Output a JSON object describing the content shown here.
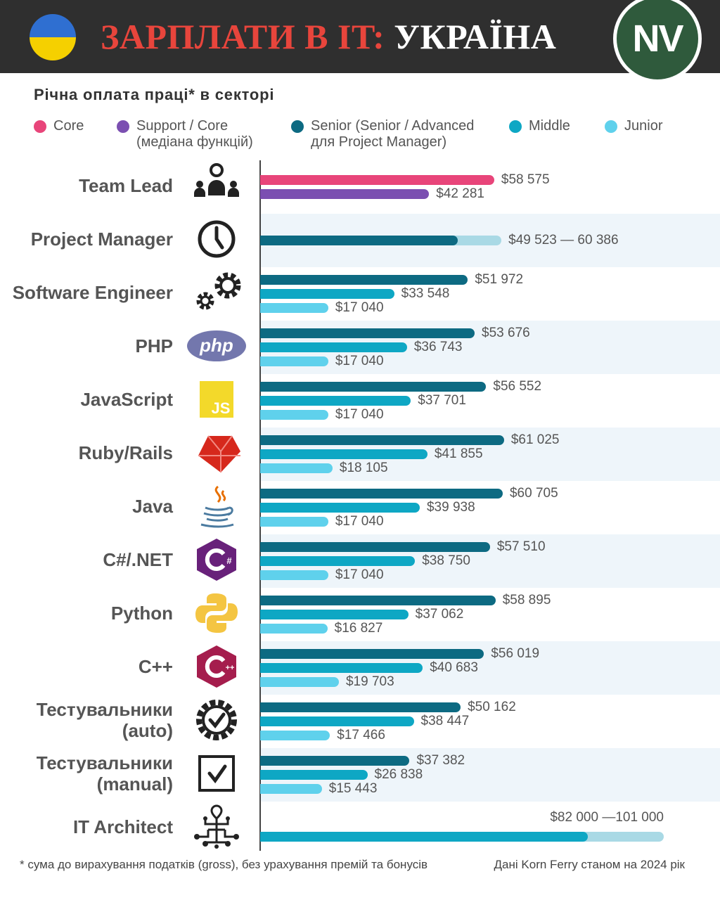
{
  "header": {
    "title_part1": "ЗАРПЛАТИ В IT:",
    "title_part2": "УКРАЇНА",
    "logo_text": "NV",
    "flag_colors": [
      "#2f6fd1",
      "#f5d000"
    ]
  },
  "subtitle": "Річна оплата праці* в секторі",
  "legend": [
    {
      "label": "Core",
      "color": "#e8457a"
    },
    {
      "label": "Support / Core\n(медіана функцій)",
      "color": "#7b4fb1"
    },
    {
      "label": "Senior (Senior / Advanced\nдля Project Manager)",
      "color": "#0d6a82"
    },
    {
      "label": "Middle",
      "color": "#0ea7c4"
    },
    {
      "label": "Junior",
      "color": "#5fd1ec"
    }
  ],
  "chart_data": {
    "type": "bar",
    "orientation": "horizontal",
    "currency": "USD",
    "xlim": [
      0,
      101000
    ],
    "series_colors": {
      "Core": "#e8457a",
      "Support / Core": "#7b4fb1",
      "Senior": "#0d6a82",
      "Middle": "#0ea7c4",
      "Junior": "#5fd1ec",
      "range": "#a9d9e5"
    },
    "rows": [
      {
        "label": "Team Lead",
        "icon": "team-icon",
        "bars": [
          {
            "series": "Core",
            "value": 58575,
            "text": "$58 575"
          },
          {
            "series": "Support / Core",
            "value": 42281,
            "text": "$42 281"
          }
        ]
      },
      {
        "label": "Project Manager",
        "icon": "clock-icon",
        "bars": [
          {
            "series": "Senior",
            "value": 49523,
            "value_max": 60386,
            "text": "$49 523 — 60 386"
          }
        ]
      },
      {
        "label": "Software Engineer",
        "icon": "gears-icon",
        "bars": [
          {
            "series": "Senior",
            "value": 51972,
            "text": "$51 972"
          },
          {
            "series": "Middle",
            "value": 33548,
            "text": "$33 548"
          },
          {
            "series": "Junior",
            "value": 17040,
            "text": "$17 040"
          }
        ]
      },
      {
        "label": "PHP",
        "icon": "php-icon",
        "bars": [
          {
            "series": "Senior",
            "value": 53676,
            "text": "$53 676"
          },
          {
            "series": "Middle",
            "value": 36743,
            "text": "$36 743"
          },
          {
            "series": "Junior",
            "value": 17040,
            "text": "$17 040"
          }
        ]
      },
      {
        "label": "JavaScript",
        "icon": "javascript-icon",
        "bars": [
          {
            "series": "Senior",
            "value": 56552,
            "text": "$56 552"
          },
          {
            "series": "Middle",
            "value": 37701,
            "text": "$37 701"
          },
          {
            "series": "Junior",
            "value": 17040,
            "text": "$17 040"
          }
        ]
      },
      {
        "label": "Ruby/Rails",
        "icon": "ruby-icon",
        "bars": [
          {
            "series": "Senior",
            "value": 61025,
            "text": "$61 025"
          },
          {
            "series": "Middle",
            "value": 41855,
            "text": "$41 855"
          },
          {
            "series": "Junior",
            "value": 18105,
            "text": "$18 105"
          }
        ]
      },
      {
        "label": "Java",
        "icon": "java-icon",
        "bars": [
          {
            "series": "Senior",
            "value": 60705,
            "text": "$60 705"
          },
          {
            "series": "Middle",
            "value": 39938,
            "text": "$39 938"
          },
          {
            "series": "Junior",
            "value": 17040,
            "text": "$17 040"
          }
        ]
      },
      {
        "label": "C#/.NET",
        "icon": "csharp-icon",
        "bars": [
          {
            "series": "Senior",
            "value": 57510,
            "text": "$57 510"
          },
          {
            "series": "Middle",
            "value": 38750,
            "text": "$38 750"
          },
          {
            "series": "Junior",
            "value": 17040,
            "text": "$17 040"
          }
        ]
      },
      {
        "label": "Python",
        "icon": "python-icon",
        "bars": [
          {
            "series": "Senior",
            "value": 58895,
            "text": "$58 895"
          },
          {
            "series": "Middle",
            "value": 37062,
            "text": "$37 062"
          },
          {
            "series": "Junior",
            "value": 16827,
            "text": "$16 827"
          }
        ]
      },
      {
        "label": "C++",
        "icon": "cplusplus-icon",
        "bars": [
          {
            "series": "Senior",
            "value": 56019,
            "text": "$56 019"
          },
          {
            "series": "Middle",
            "value": 40683,
            "text": "$40 683"
          },
          {
            "series": "Junior",
            "value": 19703,
            "text": "$19 703"
          }
        ]
      },
      {
        "label": "Тестувальники\n(auto)",
        "icon": "gear-check-icon",
        "bars": [
          {
            "series": "Senior",
            "value": 50162,
            "text": "$50 162"
          },
          {
            "series": "Middle",
            "value": 38447,
            "text": "$38 447"
          },
          {
            "series": "Junior",
            "value": 17466,
            "text": "$17 466"
          }
        ]
      },
      {
        "label": "Тестувальники\n(manual)",
        "icon": "checkbox-icon",
        "bars": [
          {
            "series": "Senior",
            "value": 37382,
            "text": "$37 382"
          },
          {
            "series": "Middle",
            "value": 26838,
            "text": "$26 838"
          },
          {
            "series": "Junior",
            "value": 15443,
            "text": "$15 443"
          }
        ]
      },
      {
        "label": "IT Architect",
        "icon": "network-icon",
        "bars": [
          {
            "series": "Middle",
            "value": 82000,
            "value_max": 101000,
            "text": "$82 000 —101 000"
          }
        ]
      }
    ]
  },
  "footnote": "* сума до вирахування податків (gross), без урахування премій та бонусів",
  "source": "Дані Korn Ferry станом на 2024 рік"
}
